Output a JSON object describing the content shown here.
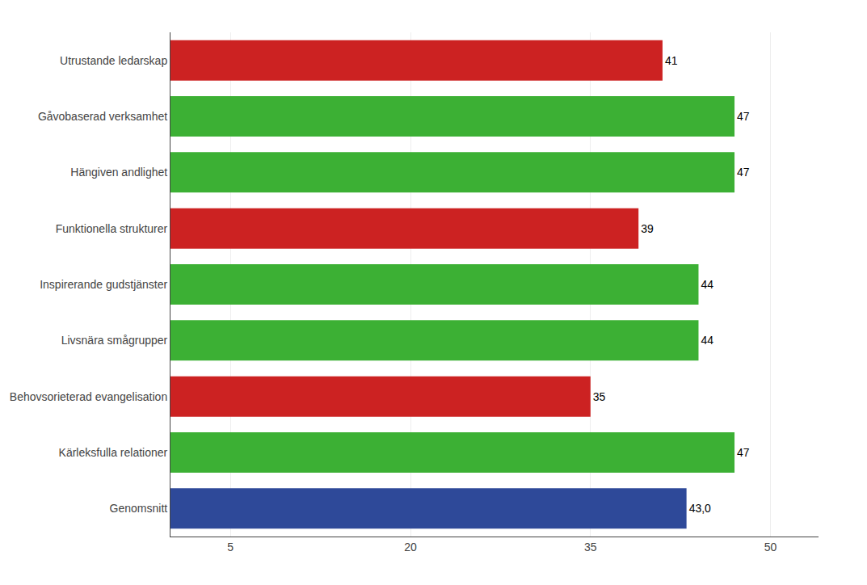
{
  "chart_data": {
    "type": "bar",
    "orientation": "horizontal",
    "categories": [
      "Genomsnitt",
      "Kärleksfulla relationer",
      "Behovsorieterad evangelisation",
      "Livsnära smågrupper",
      "Inspirerande gudstjänster",
      "Funktionella strukturer",
      "Hängiven andlighet",
      "Gåvobaserad verksamhet",
      "Utrustande ledarskap"
    ],
    "values": [
      43.0,
      47,
      35,
      44,
      44,
      39,
      47,
      47,
      41
    ],
    "value_labels": [
      "43,0",
      "47",
      "35",
      "44",
      "44",
      "39",
      "47",
      "47",
      "41"
    ],
    "data_labels": true,
    "colors": [
      "#2e4999",
      "#3cb034",
      "#cc2222",
      "#3cb034",
      "#3cb034",
      "#cc2222",
      "#3cb034",
      "#3cb034",
      "#cc2222"
    ],
    "xlim": [
      0,
      54
    ],
    "xticks": [
      5,
      20,
      35,
      50
    ],
    "grid": true
  }
}
